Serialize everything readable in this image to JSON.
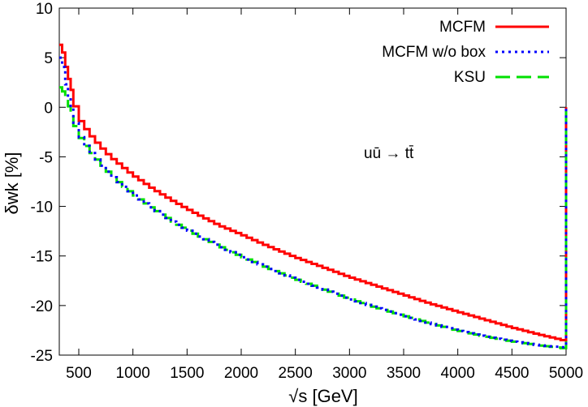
{
  "chart_data": {
    "type": "line",
    "title": "",
    "xlabel": "√s [GeV]",
    "ylabel": "δwk [%]",
    "xlim": [
      320,
      5000
    ],
    "ylim": [
      -25,
      10
    ],
    "xticks": [
      500,
      1000,
      1500,
      2000,
      2500,
      3000,
      3500,
      4000,
      4500,
      5000
    ],
    "yticks": [
      10,
      5,
      0,
      -5,
      -10,
      -15,
      -20,
      -25
    ],
    "grid": false,
    "legend_position": "top-right",
    "annotation": "uū → tt̄",
    "step_width": 50,
    "series": [
      {
        "name": "MCFM",
        "color": "#ff0000",
        "style": "solid",
        "x": [
          346,
          400,
          500,
          600,
          700,
          800,
          900,
          1000,
          1200,
          1400,
          1600,
          1800,
          2000,
          2250,
          2500,
          2750,
          3000,
          3250,
          3500,
          3750,
          4000,
          4250,
          4500,
          4750,
          4980
        ],
        "y": [
          6.3,
          3.4,
          -1.0,
          -2.6,
          -3.9,
          -5.0,
          -5.9,
          -6.8,
          -8.3,
          -9.6,
          -10.8,
          -11.9,
          -12.8,
          -14.0,
          -15.1,
          -16.1,
          -17.1,
          -18.0,
          -18.9,
          -19.8,
          -20.6,
          -21.4,
          -22.2,
          -22.9,
          -23.5
        ]
      },
      {
        "name": "MCFM w/o box",
        "color": "#0000ff",
        "style": "dotted",
        "x": [
          346,
          400,
          500,
          600,
          700,
          800,
          900,
          1000,
          1200,
          1400,
          1600,
          1800,
          2000,
          2250,
          2500,
          2750,
          3000,
          3250,
          3500,
          3750,
          4000,
          4250,
          4500,
          4750,
          4980
        ],
        "y": [
          5.0,
          1.5,
          -2.6,
          -4.3,
          -5.6,
          -6.8,
          -7.8,
          -8.7,
          -10.3,
          -11.7,
          -12.9,
          -14.0,
          -15.0,
          -16.2,
          -17.3,
          -18.3,
          -19.3,
          -20.2,
          -21.0,
          -21.8,
          -22.5,
          -23.1,
          -23.6,
          -24.0,
          -24.2
        ]
      },
      {
        "name": "KSU",
        "color": "#00e000",
        "style": "dashed",
        "x": [
          346,
          400,
          500,
          600,
          700,
          800,
          900,
          1000,
          1200,
          1400,
          1600,
          1800,
          2000,
          2250,
          2500,
          2750,
          3000,
          3250,
          3500,
          3750,
          4000,
          4250,
          4500,
          4750,
          4980
        ],
        "y": [
          2.0,
          0.5,
          -2.7,
          -4.3,
          -5.6,
          -6.8,
          -7.8,
          -8.7,
          -10.3,
          -11.7,
          -12.9,
          -14.0,
          -15.0,
          -16.2,
          -17.3,
          -18.3,
          -19.3,
          -20.2,
          -21.0,
          -21.8,
          -22.5,
          -23.1,
          -23.6,
          -24.0,
          -24.3
        ]
      }
    ]
  }
}
